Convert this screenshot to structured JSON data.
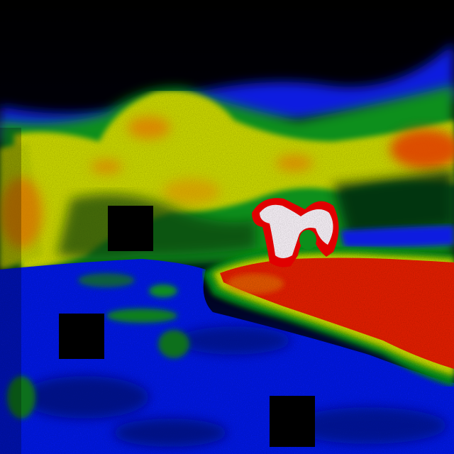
{
  "image": {
    "kind": "false-color thermal photograph",
    "palette": {
      "background": "#000000",
      "cold": "#0a1ee0",
      "cool": "#0b8f1a",
      "mild": "#c8d400",
      "warm": "#e07a00",
      "hot": "#e00000",
      "hottest": "#f4eef4"
    },
    "occlusion_squares": 3
  }
}
